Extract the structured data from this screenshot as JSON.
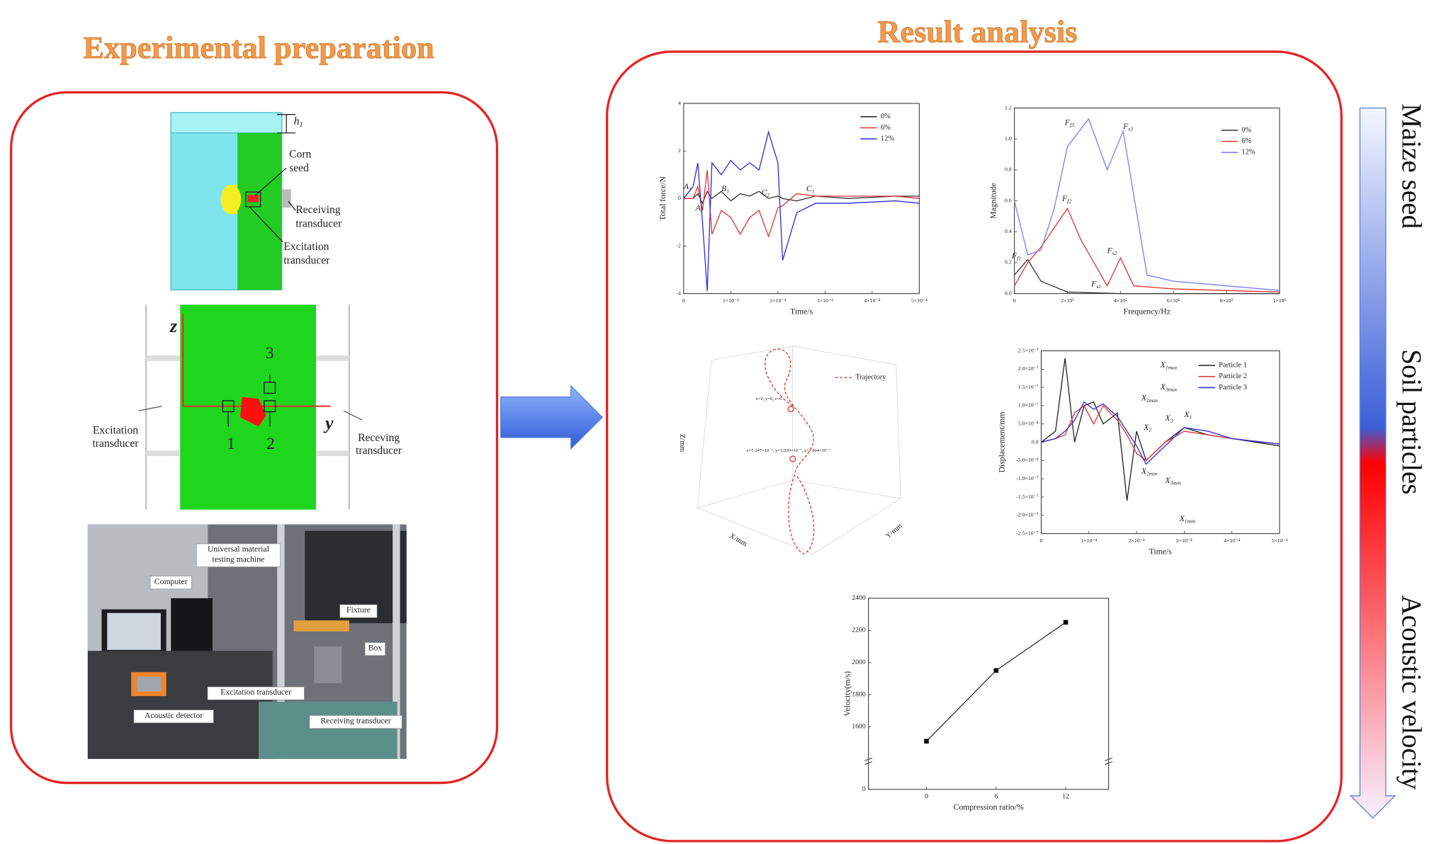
{
  "titles": {
    "left": "Experimental preparation",
    "right": "Result analysis"
  },
  "side_labels": [
    "Maize seed",
    "Soil particles",
    "Acoustic velocity"
  ],
  "model": {
    "h": {
      "main": "h",
      "sub": "1"
    },
    "labels": [
      [
        "Corn",
        "seed"
      ],
      [
        "Receiving",
        "transducer"
      ],
      [
        "Excitation",
        "transducer"
      ]
    ]
  },
  "simulation": {
    "axes": [
      "z",
      "y"
    ],
    "points": [
      "1",
      "2",
      "3"
    ],
    "left": [
      "Excitation",
      "transducer"
    ],
    "right": [
      "Receving",
      "transducer"
    ]
  },
  "photo_labels": [
    [
      "Universal material",
      "testing machine"
    ],
    [
      "Computer"
    ],
    [
      "Fixture"
    ],
    [
      "Box"
    ],
    [
      "Excitation transducer"
    ],
    [
      "Acoustic detector"
    ],
    [
      "Receiving transducer"
    ]
  ],
  "chart_data": [
    {
      "type": "line",
      "xlabel": "Time/s",
      "ylabel": "Total force/N",
      "xlim": [
        0,
        0.0005
      ],
      "ylim": [
        -4,
        4
      ],
      "xticks": [
        0,
        {
          "value": 0.0001,
          "label": "1×10⁻⁴"
        },
        {
          "value": 0.0002,
          "label": "2×10⁻⁴"
        },
        {
          "value": 0.0003,
          "label": "3×10⁻⁴"
        },
        {
          "value": 0.0004,
          "label": "4×10⁻⁴"
        },
        {
          "value": 0.0005,
          "label": "5×10⁻⁴"
        }
      ],
      "yticks": [
        -4,
        -2,
        0,
        2,
        4
      ],
      "annotations": [
        {
          "main": "A",
          "sub": "1"
        },
        {
          "main": "A",
          "sub": "2"
        },
        {
          "main": "B",
          "sub": "1"
        },
        {
          "main": "C",
          "sub": "2"
        },
        {
          "main": "C",
          "sub": "1"
        }
      ],
      "x": [
        0,
        2e-05,
        3e-05,
        4e-05,
        5e-05,
        6e-05,
        8e-05,
        0.0001,
        0.00012,
        0.00014,
        0.00016,
        0.00018,
        0.0002,
        0.00021,
        0.00024,
        0.00028,
        0.00035,
        0.00045,
        0.0005
      ],
      "series": [
        {
          "name": "0%",
          "color": "#333333",
          "values": [
            0,
            0,
            0.2,
            -0.2,
            0.3,
            0,
            0.3,
            -0.1,
            0.2,
            0.1,
            0.3,
            0,
            0.1,
            0,
            -0.1,
            0.1,
            0,
            0.1,
            0.1
          ]
        },
        {
          "name": "6%",
          "color": "#e8302a",
          "values": [
            0,
            0,
            0.5,
            -0.5,
            1.2,
            -1.5,
            -0.5,
            -0.8,
            -1.5,
            -0.8,
            -0.5,
            -1.6,
            -0.4,
            -0.3,
            0.2,
            0.1,
            0.1,
            0.1,
            0
          ]
        },
        {
          "name": "12%",
          "color": "#2a2ae8",
          "values": [
            0,
            0.5,
            1.5,
            -1,
            -3.9,
            1.5,
            1,
            1.6,
            1.2,
            1.5,
            1.2,
            2.8,
            1.5,
            -2.6,
            -0.6,
            -0.2,
            -0.2,
            -0.1,
            -0.2
          ]
        }
      ]
    },
    {
      "type": "line",
      "xlabel": "Frequency/Hz",
      "ylabel": "Magnitude",
      "xlim": [
        0,
        1000000
      ],
      "ylim": [
        0,
        1.2
      ],
      "xticks": [
        0,
        {
          "value": 200000,
          "label": "2×10⁵"
        },
        {
          "value": 400000,
          "label": "4×10⁵"
        },
        {
          "value": 600000,
          "label": "6×10⁵"
        },
        {
          "value": 800000,
          "label": "8×10⁵"
        },
        {
          "value": 1000000,
          "label": "1×10⁶"
        }
      ],
      "yticks": [
        {
          "value": 0,
          "label": "0.0"
        },
        0.2,
        0.4,
        0.6,
        0.8,
        {
          "value": 1,
          "label": "1.0"
        },
        1.2
      ],
      "annotations": [
        {
          "main": "F",
          "sub": "f3"
        },
        {
          "main": "F",
          "sub": "s3"
        },
        {
          "main": "F",
          "sub": "f2"
        },
        {
          "main": "F",
          "sub": "s2"
        },
        {
          "main": "F",
          "sub": "s1"
        },
        {
          "main": "F",
          "sub": "f1"
        }
      ],
      "series": [
        {
          "name": "0%",
          "color": "#333333",
          "x": [
            0,
            50000,
            100000,
            200000,
            400000,
            1000000
          ],
          "values": [
            0.12,
            0.22,
            0.08,
            0.01,
            0,
            0
          ]
        },
        {
          "name": "6%",
          "color": "#e8302a",
          "x": [
            0,
            50000,
            100000,
            200000,
            250000,
            350000,
            400000,
            450000,
            600000,
            1000000
          ],
          "values": [
            0.05,
            0.2,
            0.3,
            0.55,
            0.35,
            0.05,
            0.23,
            0.05,
            0.03,
            0.01
          ]
        },
        {
          "name": "12%",
          "color": "#7a7aff",
          "x": [
            0,
            50000,
            100000,
            150000,
            200000,
            280000,
            350000,
            410000,
            500000,
            600000,
            800000,
            1000000
          ],
          "values": [
            0.6,
            0.25,
            0.28,
            0.55,
            0.95,
            1.13,
            0.8,
            1.05,
            0.12,
            0.08,
            0.05,
            0.02
          ]
        }
      ]
    },
    {
      "type": "line3d",
      "legend": "Trajectory",
      "color": "#e8302a",
      "axis_labels": [
        "X/mm",
        "Y/mm",
        "Z/mm"
      ],
      "annotations": [
        "x=0, y=0, z=0",
        "x=5.247×10⁻⁷, y=1.030×10⁻⁷, z=1.064×10⁻⁷"
      ]
    },
    {
      "type": "line",
      "xlabel": "Time/s",
      "ylabel": "Displacement/mm",
      "xlim": [
        0,
        0.0005
      ],
      "ylim": [
        -2.5e-07,
        2.5e-07
      ],
      "xticks": [
        0,
        {
          "value": 0.0001,
          "label": "1×10⁻⁴"
        },
        {
          "value": 0.0002,
          "label": "2×10⁻⁴"
        },
        {
          "value": 0.0003,
          "label": "3×10⁻⁴"
        },
        {
          "value": 0.0004,
          "label": "4×10⁻⁴"
        },
        {
          "value": 0.0005,
          "label": "5×10⁻⁴"
        }
      ],
      "yticks": [
        {
          "value": -2.5e-07,
          "label": "-2.5×10⁻⁷"
        },
        {
          "value": -2e-07,
          "label": "-2.0×10⁻⁷"
        },
        {
          "value": -1.5e-07,
          "label": "-1.5×10⁻⁷"
        },
        {
          "value": -1e-07,
          "label": "-1.0×10⁻⁷"
        },
        {
          "value": -5e-08,
          "label": "-5.0×10⁻⁸"
        },
        {
          "value": 0,
          "label": "0.0"
        },
        {
          "value": 5e-08,
          "label": "5.0×10⁻⁸"
        },
        {
          "value": 1e-07,
          "label": "1.0×10⁻⁷"
        },
        {
          "value": 1.5e-07,
          "label": "1.5×10⁻⁷"
        },
        {
          "value": 2e-07,
          "label": "2.0×10⁻⁷"
        },
        {
          "value": 2.5e-07,
          "label": "2.5×10⁻⁷"
        }
      ],
      "annotations": [
        {
          "main": "X",
          "sub": "1max"
        },
        {
          "main": "X",
          "sub": "3max"
        },
        {
          "main": "X",
          "sub": "2max"
        },
        {
          "main": "X",
          "sub": "1"
        },
        {
          "main": "X",
          "sub": "3"
        },
        {
          "main": "X",
          "sub": "2"
        },
        {
          "main": "X",
          "sub": "2min"
        },
        {
          "main": "X",
          "sub": "3min"
        },
        {
          "main": "X",
          "sub": "1min"
        }
      ],
      "x": [
        0,
        3e-05,
        5e-05,
        7e-05,
        9e-05,
        0.00011,
        0.00013,
        0.00016,
        0.00018,
        0.0002,
        0.00022,
        0.00026,
        0.0003,
        0.00035,
        0.0004,
        0.0005
      ],
      "series": [
        {
          "name": "Particle 1",
          "color": "#222222",
          "values": [
            0,
            3e-08,
            2.3e-07,
            0,
            1e-07,
            1.1e-07,
            5e-08,
            8e-08,
            -1.6e-07,
            3e-08,
            -5e-08,
            0,
            4e-08,
            2e-08,
            1e-08,
            -1e-08
          ]
        },
        {
          "name": "Particle 2",
          "color": "#e8302a",
          "values": [
            0,
            1e-08,
            2e-08,
            8e-08,
            1e-07,
            5e-08,
            1e-07,
            6e-08,
            2e-08,
            -3e-08,
            -5e-08,
            0,
            3e-08,
            2e-08,
            1e-08,
            -5e-09
          ]
        },
        {
          "name": "Particle 3",
          "color": "#2a2ae8",
          "values": [
            0,
            1e-08,
            3e-08,
            6e-08,
            1.1e-07,
            9e-08,
            1.05e-07,
            7e-08,
            3e-08,
            -1e-08,
            -6e-08,
            -1e-08,
            4e-08,
            3e-08,
            1e-08,
            -5e-09
          ]
        }
      ]
    },
    {
      "type": "line",
      "xlabel": "Compression ratio/%",
      "ylabel": "Velocity(m/s)",
      "xlim": [
        -5,
        15.7
      ],
      "ylim": [
        1400,
        2400
      ],
      "xticks": [
        0,
        6,
        12
      ],
      "yticks": [
        1600,
        1800,
        2000,
        2200,
        2400
      ],
      "axis_break_label": "0",
      "x": [
        0,
        6,
        12
      ],
      "values": [
        1510,
        1950,
        2250
      ],
      "color": "#000000"
    }
  ]
}
